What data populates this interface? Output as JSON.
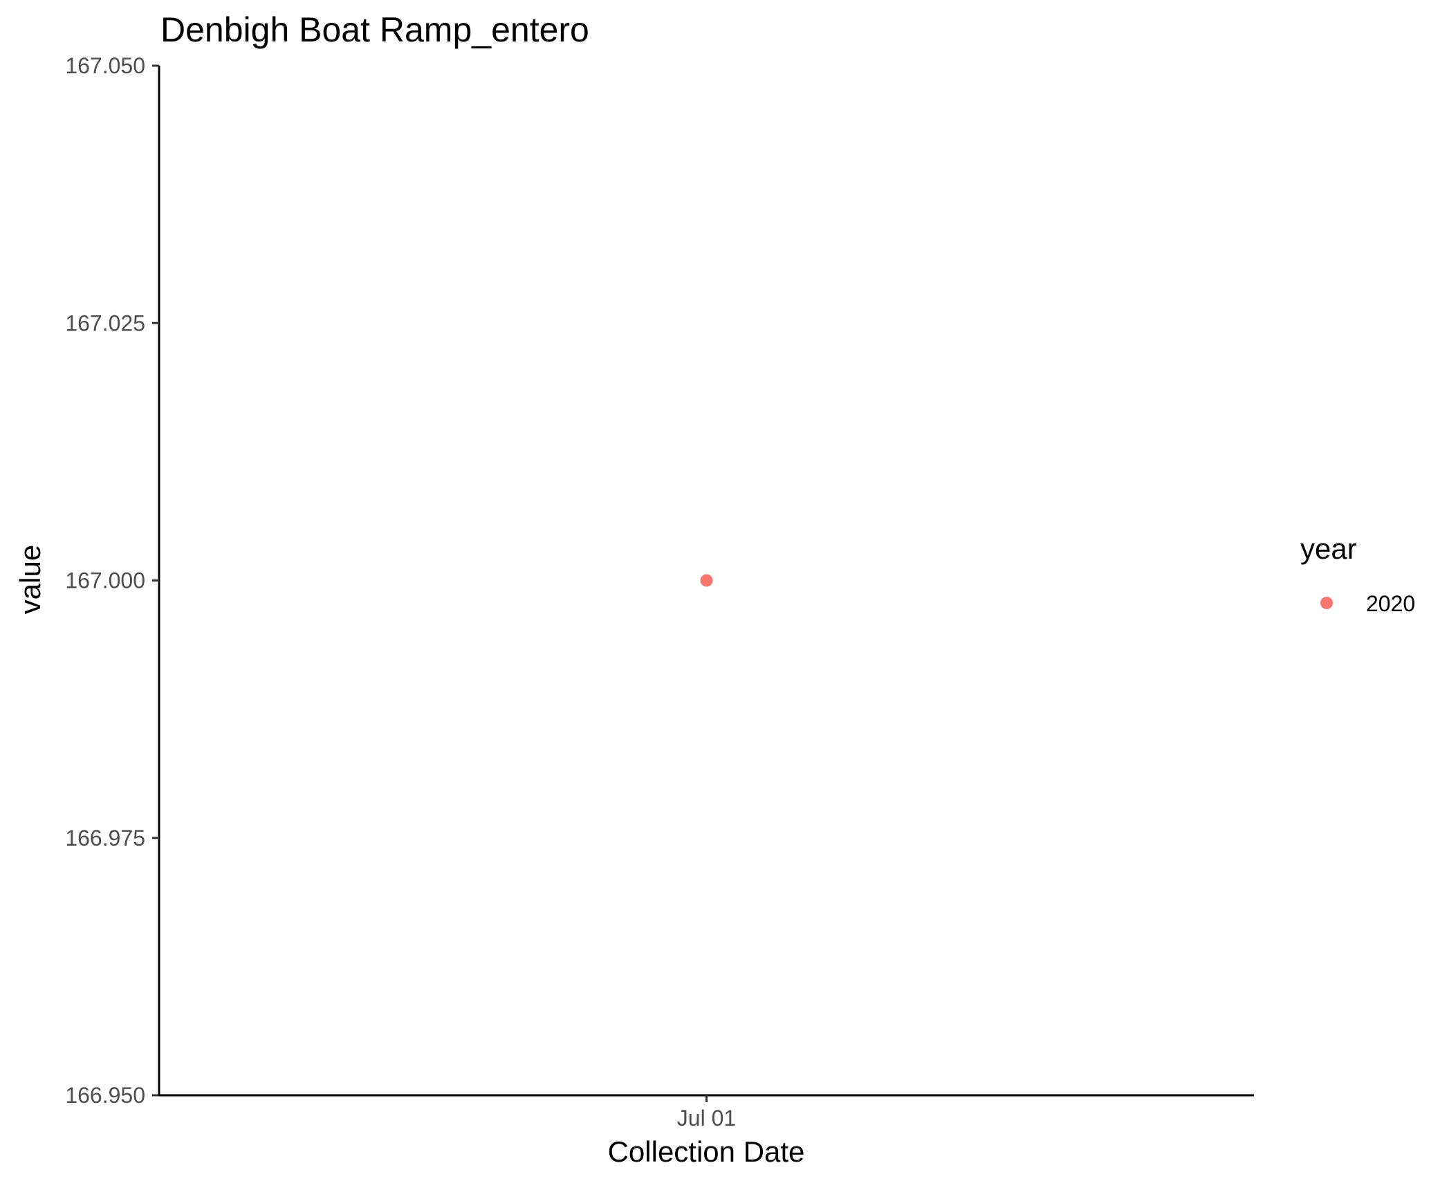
{
  "chart_data": {
    "type": "scatter",
    "title": "Denbigh Boat Ramp_entero",
    "xlabel": "Collection Date",
    "ylabel": "value",
    "x_ticks": [
      {
        "value": "2020-07-01",
        "label": "Jul 01"
      }
    ],
    "y_ticks": [
      {
        "value": 166.95,
        "label": "166.950"
      },
      {
        "value": 166.975,
        "label": "166.975"
      },
      {
        "value": 167.0,
        "label": "167.000"
      },
      {
        "value": 167.025,
        "label": "167.025"
      },
      {
        "value": 167.05,
        "label": "167.050"
      }
    ],
    "ylim": [
      166.95,
      167.05
    ],
    "grid": false,
    "legend": {
      "title": "year",
      "placement": "right",
      "entries": [
        {
          "label": "2020",
          "color": "#F8766D"
        }
      ]
    },
    "series": [
      {
        "name": "2020",
        "color": "#F8766D",
        "points": [
          {
            "x": "2020-07-01",
            "y": 167.0
          }
        ]
      }
    ]
  }
}
